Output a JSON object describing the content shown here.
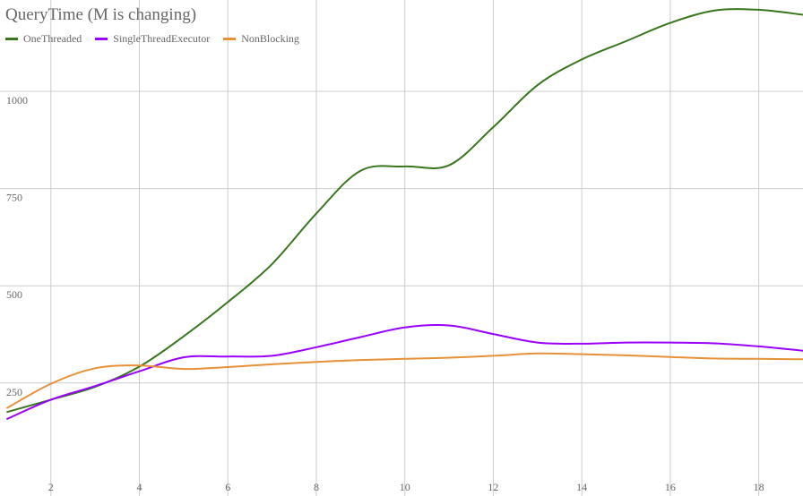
{
  "chart_data": {
    "type": "line",
    "title": "QueryTime (M is changing)",
    "xlabel": "",
    "ylabel": "",
    "xlim": [
      0.85,
      19.0
    ],
    "ylim": [
      10,
      1235
    ],
    "xticks": [
      2,
      4,
      6,
      8,
      10,
      12,
      14,
      16,
      18
    ],
    "yticks": [
      250,
      500,
      750,
      1000
    ],
    "grid": true,
    "legend_position": "top-left",
    "x": [
      1,
      2,
      3,
      4,
      5,
      6,
      7,
      8,
      9,
      10,
      11,
      12,
      13,
      14,
      15,
      16,
      17,
      18,
      19
    ],
    "series": [
      {
        "name": "OneThreaded",
        "color": "#38761d",
        "values": [
          175,
          207,
          240,
          292,
          370,
          458,
          556,
          686,
          796,
          807,
          810,
          908,
          1016,
          1082,
          1129,
          1176,
          1208,
          1210,
          1197
        ]
      },
      {
        "name": "SingleThreadExecutor",
        "color": "#9900ff",
        "values": [
          157,
          207,
          242,
          280,
          316,
          318,
          320,
          342,
          368,
          393,
          398,
          376,
          354,
          351,
          354,
          354,
          352,
          344,
          333
        ]
      },
      {
        "name": "NonBlocking",
        "color": "#e69138",
        "values": [
          185,
          248,
          288,
          295,
          286,
          291,
          298,
          304,
          309,
          312,
          315,
          320,
          326,
          324,
          321,
          317,
          313,
          312,
          311
        ]
      }
    ]
  }
}
